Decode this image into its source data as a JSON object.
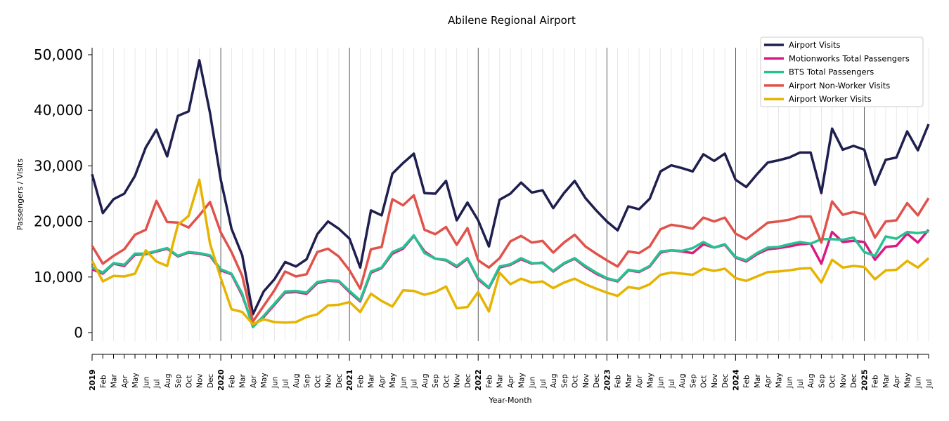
{
  "chart_data": {
    "type": "line",
    "title": "Abilene Regional Airport",
    "xlabel": "Year-Month",
    "ylabel": "Passengers / Visits",
    "ylim": [
      0,
      50000
    ],
    "yticks": [
      0,
      10000,
      20000,
      30000,
      40000,
      50000
    ],
    "ytick_labels": [
      "0",
      "10,000",
      "20,000",
      "30,000",
      "40,000",
      "50,000"
    ],
    "legend_position": "top-right",
    "grid": "vertical monthly gridlines, darker lines at each January",
    "categories": [
      "2019",
      "Feb",
      "Mar",
      "Apr",
      "May",
      "Jun",
      "Jul",
      "Aug",
      "Sep",
      "Oct",
      "Nov",
      "Dec",
      "2020",
      "Feb",
      "Mar",
      "Apr",
      "May",
      "Jun",
      "Jul",
      "Aug",
      "Sep",
      "Oct",
      "Nov",
      "Dec",
      "2021",
      "Feb",
      "Mar",
      "Apr",
      "May",
      "Jun",
      "Jul",
      "Aug",
      "Sep",
      "Oct",
      "Nov",
      "Dec",
      "2022",
      "Feb",
      "Mar",
      "Apr",
      "May",
      "Jun",
      "Jul",
      "Aug",
      "Sep",
      "Oct",
      "Nov",
      "Dec",
      "2023",
      "Feb",
      "Mar",
      "Apr",
      "May",
      "Jun",
      "Jul",
      "Aug",
      "Sep",
      "Oct",
      "Nov",
      "Dec",
      "2024",
      "Feb",
      "Mar",
      "Apr",
      "May",
      "Jun",
      "Jul",
      "Aug",
      "Sep",
      "Oct",
      "Nov",
      "Dec",
      "2025",
      "Feb",
      "Mar",
      "Apr",
      "May",
      "Jun",
      "Jul"
    ],
    "series": [
      {
        "name": "Airport Visits",
        "color": "#1f1f4f",
        "values": [
          28500,
          21500,
          24000,
          25000,
          28200,
          33300,
          36500,
          31700,
          39000,
          39800,
          49000,
          39500,
          27500,
          18700,
          13900,
          3300,
          7400,
          9600,
          12700,
          11900,
          13200,
          17700,
          20000,
          18700,
          16900,
          11700,
          22000,
          21100,
          28600,
          30500,
          32200,
          25100,
          25000,
          27300,
          20200,
          23400,
          20200,
          15500,
          23900,
          25000,
          27000,
          25200,
          25600,
          22400,
          25100,
          27300,
          24200,
          22000,
          20000,
          18400,
          22700,
          22200,
          24100,
          29000,
          30100,
          29600,
          29000,
          32100,
          30900,
          32200,
          27500,
          26200,
          28500,
          30600,
          31000,
          31500,
          32400,
          32400,
          25100,
          36700,
          32900,
          33600,
          32900,
          26600,
          31100,
          31500,
          36200,
          32800,
          37500
        ]
      },
      {
        "name": "Motionworks Total Passengers",
        "color": "#d81b84",
        "values": [
          11400,
          10600,
          12400,
          12000,
          14000,
          14100,
          14600,
          15100,
          13700,
          14400,
          14200,
          13800,
          11200,
          10500,
          6700,
          1300,
          2800,
          5000,
          7200,
          7300,
          7000,
          8900,
          9300,
          9200,
          7300,
          5600,
          10800,
          11600,
          14200,
          15100,
          17400,
          14600,
          13300,
          13000,
          11800,
          13300,
          9600,
          8000,
          11700,
          12200,
          13200,
          12400,
          12600,
          11000,
          12400,
          13300,
          11800,
          10600,
          9700,
          9200,
          11200,
          10900,
          11900,
          14400,
          14800,
          14600,
          14300,
          15900,
          15300,
          15800,
          13500,
          12800,
          14100,
          15000,
          15200,
          15500,
          15900,
          16000,
          12400,
          18100,
          16300,
          16500,
          16300,
          13100,
          15400,
          15600,
          17800,
          16200,
          18500
        ]
      },
      {
        "name": "BTS Total Passengers",
        "color": "#26c291",
        "values": [
          11700,
          10800,
          12500,
          12200,
          14200,
          14200,
          14700,
          15200,
          13800,
          14500,
          14300,
          13900,
          11400,
          10600,
          7000,
          1000,
          3000,
          5200,
          7400,
          7500,
          7200,
          9100,
          9400,
          9300,
          7500,
          5800,
          11000,
          11700,
          14500,
          15300,
          17500,
          14300,
          13300,
          13100,
          12000,
          13400,
          9800,
          8100,
          11900,
          12300,
          13400,
          12500,
          12500,
          11100,
          12500,
          13400,
          12000,
          10800,
          9800,
          9300,
          11300,
          11000,
          12000,
          14600,
          14800,
          14700,
          15200,
          16300,
          15300,
          15900,
          13600,
          13000,
          14300,
          15300,
          15400,
          15900,
          16300,
          16000,
          16800,
          16800,
          16700,
          17100,
          14500,
          13800,
          17300,
          16900,
          18100,
          17900,
          18200
        ]
      },
      {
        "name": "Airport Non-Worker Visits",
        "color": "#e0524a",
        "values": [
          15600,
          12400,
          13800,
          15000,
          17600,
          18500,
          23700,
          19900,
          19800,
          18900,
          21100,
          23500,
          18000,
          14500,
          10200,
          2000,
          4800,
          7600,
          11000,
          10100,
          10500,
          14500,
          15100,
          13700,
          11200,
          7900,
          15000,
          15400,
          24000,
          22900,
          24700,
          18500,
          17700,
          19000,
          15800,
          18800,
          13000,
          11700,
          13400,
          16400,
          17400,
          16200,
          16500,
          14400,
          16200,
          17600,
          15500,
          14200,
          13000,
          11900,
          14600,
          14300,
          15500,
          18600,
          19400,
          19100,
          18700,
          20700,
          20000,
          20700,
          17800,
          16800,
          18300,
          19800,
          20000,
          20300,
          20900,
          20900,
          16200,
          23600,
          21200,
          21700,
          21300,
          17100,
          20000,
          20200,
          23300,
          21100,
          24200
        ]
      },
      {
        "name": "Airport Worker Visits",
        "color": "#e6b400",
        "values": [
          12900,
          9200,
          10200,
          10100,
          10600,
          14800,
          12800,
          12000,
          19400,
          21000,
          27500,
          16000,
          9800,
          4200,
          3700,
          1500,
          2400,
          1900,
          1800,
          1900,
          2800,
          3300,
          4900,
          5000,
          5500,
          3700,
          7000,
          5700,
          4700,
          7600,
          7500,
          6800,
          7300,
          8300,
          4400,
          4600,
          7300,
          3800,
          10800,
          8700,
          9700,
          9000,
          9200,
          8000,
          9000,
          9700,
          8700,
          7900,
          7200,
          6600,
          8200,
          7900,
          8700,
          10400,
          10800,
          10600,
          10400,
          11500,
          11100,
          11500,
          9800,
          9300,
          10100,
          10900,
          11000,
          11200,
          11500,
          11600,
          9000,
          13100,
          11700,
          12000,
          11800,
          9600,
          11200,
          11300,
          12900,
          11700,
          13400
        ]
      }
    ]
  }
}
